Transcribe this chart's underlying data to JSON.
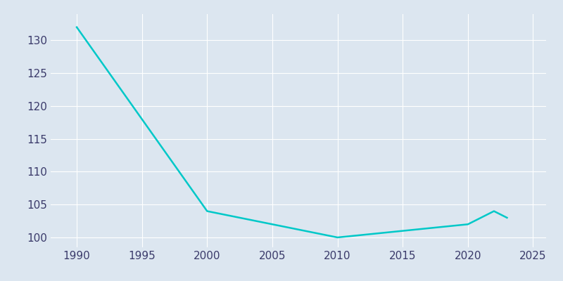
{
  "years": [
    1990,
    2000,
    2005,
    2010,
    2015,
    2020,
    2022,
    2023
  ],
  "population": [
    132,
    104,
    102,
    100,
    101,
    102,
    104,
    103
  ],
  "line_color": "#00C8C8",
  "bg_color": "#dce6f0",
  "figure_bg": "#dce6f0",
  "grid_color": "#ffffff",
  "tick_color": "#3a3a6a",
  "xlim": [
    1988,
    2026
  ],
  "ylim": [
    98.5,
    134
  ],
  "xticks": [
    1990,
    1995,
    2000,
    2005,
    2010,
    2015,
    2020,
    2025
  ],
  "yticks": [
    100,
    105,
    110,
    115,
    120,
    125,
    130
  ],
  "linewidth": 1.8,
  "tick_fontsize": 11
}
